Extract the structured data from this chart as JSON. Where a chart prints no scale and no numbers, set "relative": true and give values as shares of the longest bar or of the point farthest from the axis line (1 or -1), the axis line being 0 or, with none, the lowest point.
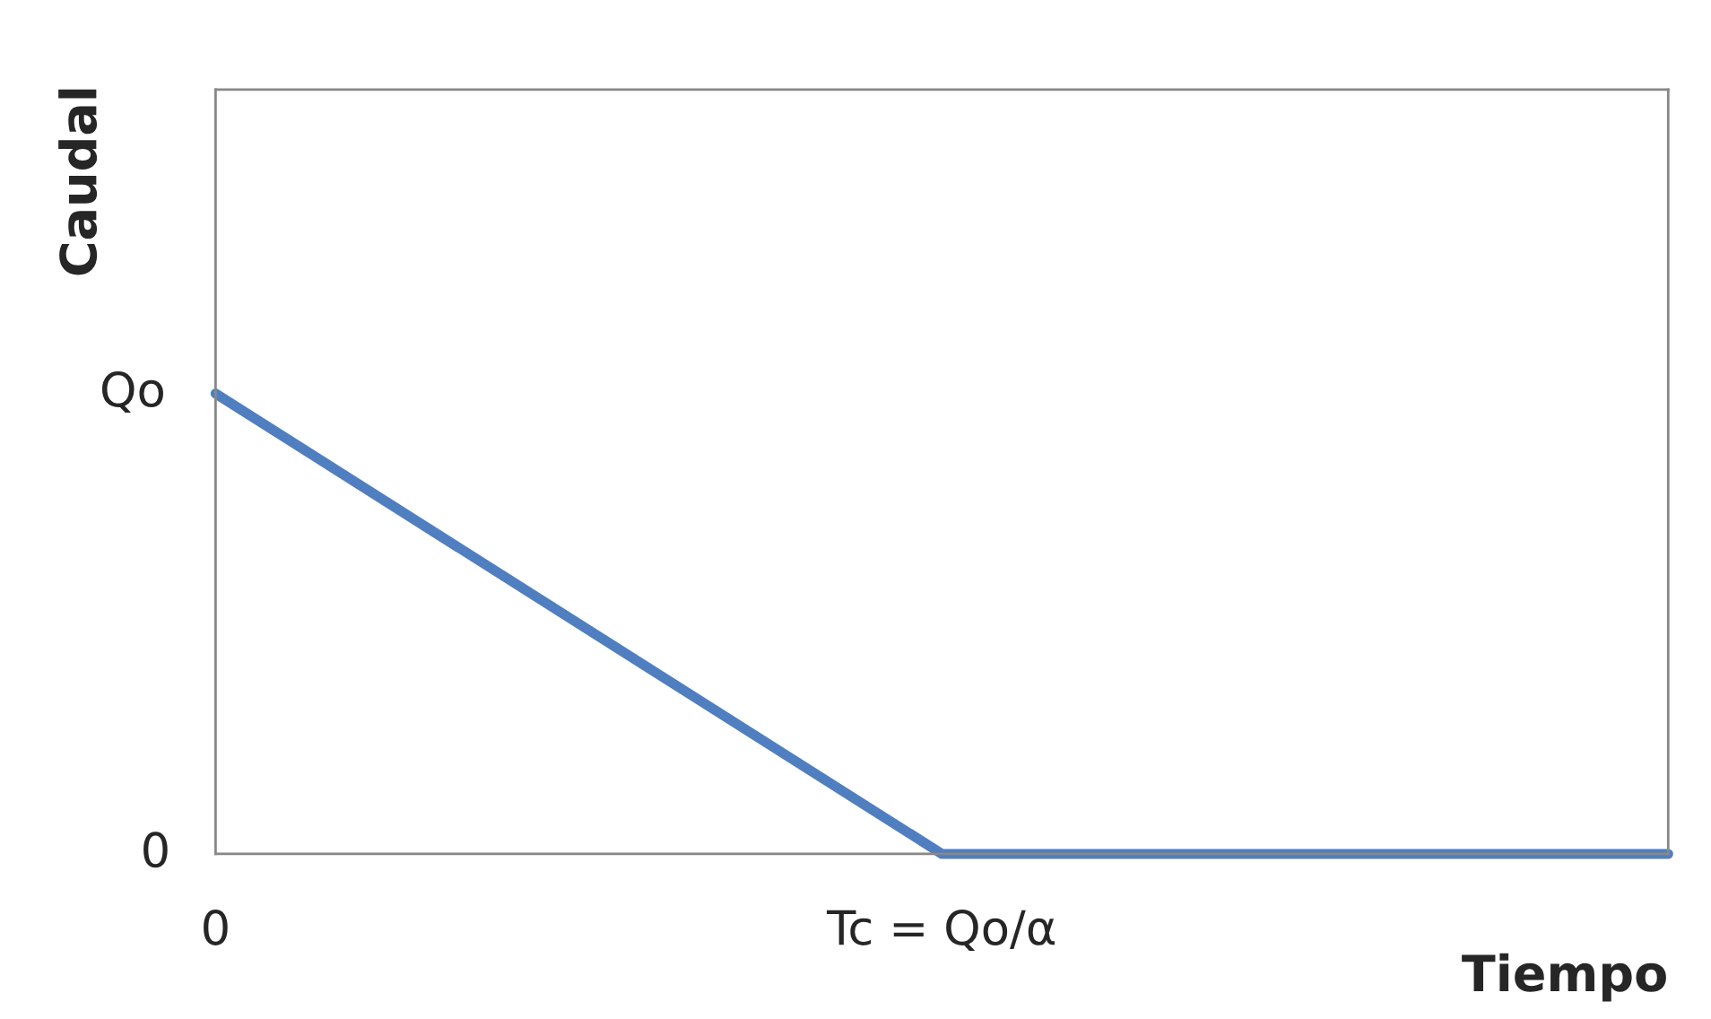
{
  "chart_data": {
    "type": "line",
    "xlabel": "Tiempo",
    "ylabel": "Caudal",
    "relative": true,
    "categories": [
      "0",
      "Tc = Qo/α",
      null
    ],
    "series": [
      {
        "color": "#4f7fc0",
        "values": [
          1,
          0,
          0
        ]
      }
    ],
    "annotations": [
      {
        "text": "Qo",
        "x": "0",
        "y": 1
      },
      "0"
    ]
  }
}
